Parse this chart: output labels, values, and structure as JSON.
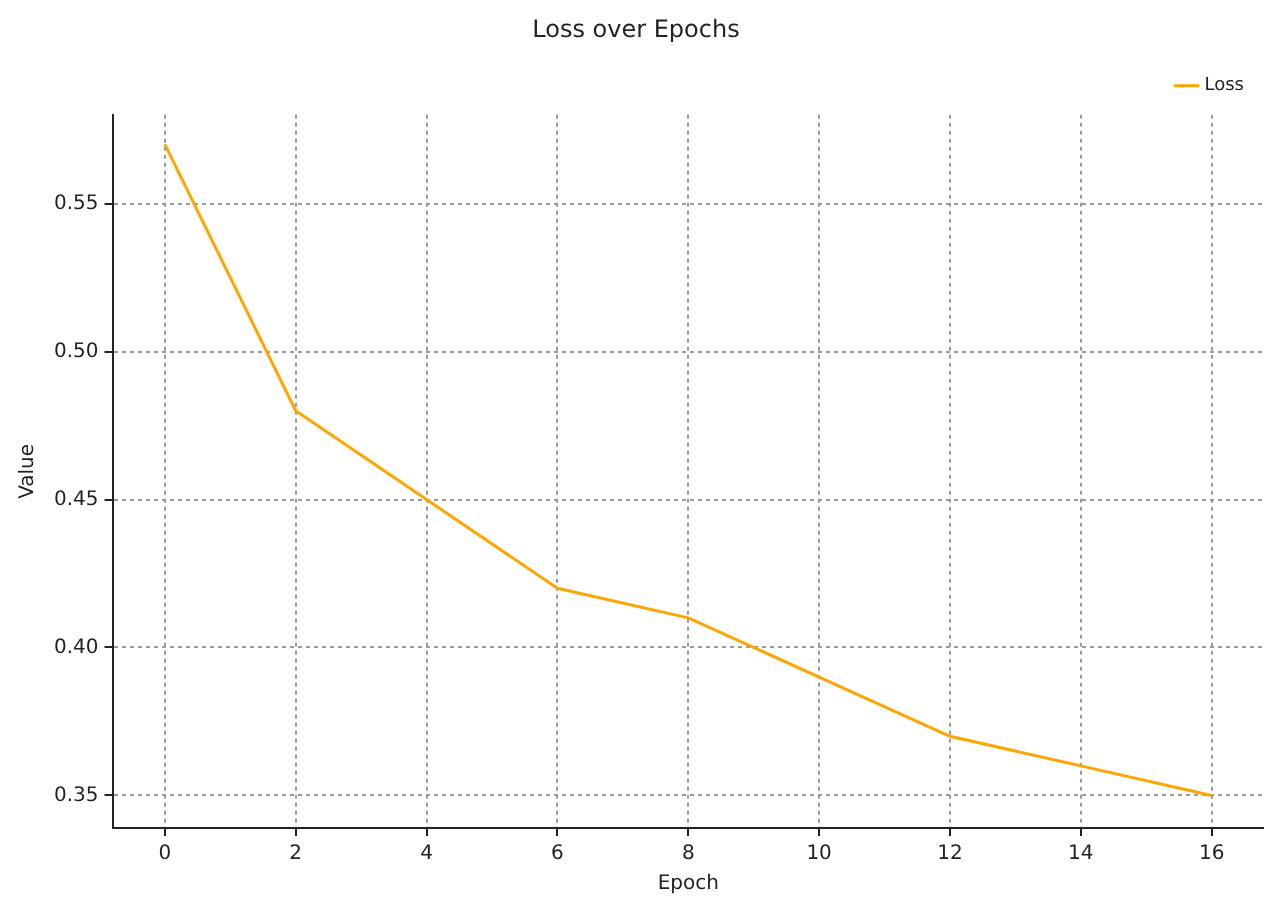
{
  "chart_data": {
    "type": "line",
    "title": "Loss over Epochs",
    "xlabel": "Epoch",
    "ylabel": "Value",
    "x": [
      0,
      2,
      4,
      6,
      8,
      10,
      12,
      14,
      16
    ],
    "series": [
      {
        "name": "Loss",
        "color": "#ffa500",
        "values": [
          0.57,
          0.48,
          0.45,
          0.42,
          0.41,
          0.39,
          0.37,
          0.36,
          0.35
        ]
      }
    ],
    "xlim": [
      -0.8,
      16.8
    ],
    "xticks": [
      0,
      2,
      4,
      6,
      8,
      10,
      12,
      14,
      16
    ],
    "ylim": [
      0.339,
      0.58
    ],
    "yticks": [
      {
        "value": 0.35,
        "label": "0.35"
      },
      {
        "value": 0.4,
        "label": "0.40"
      },
      {
        "value": 0.45,
        "label": "0.45"
      },
      {
        "value": 0.5,
        "label": "0.50"
      },
      {
        "value": 0.55,
        "label": "0.55"
      }
    ],
    "grid": true,
    "legend": "top right",
    "marker": "none",
    "line_style": "solid"
  }
}
